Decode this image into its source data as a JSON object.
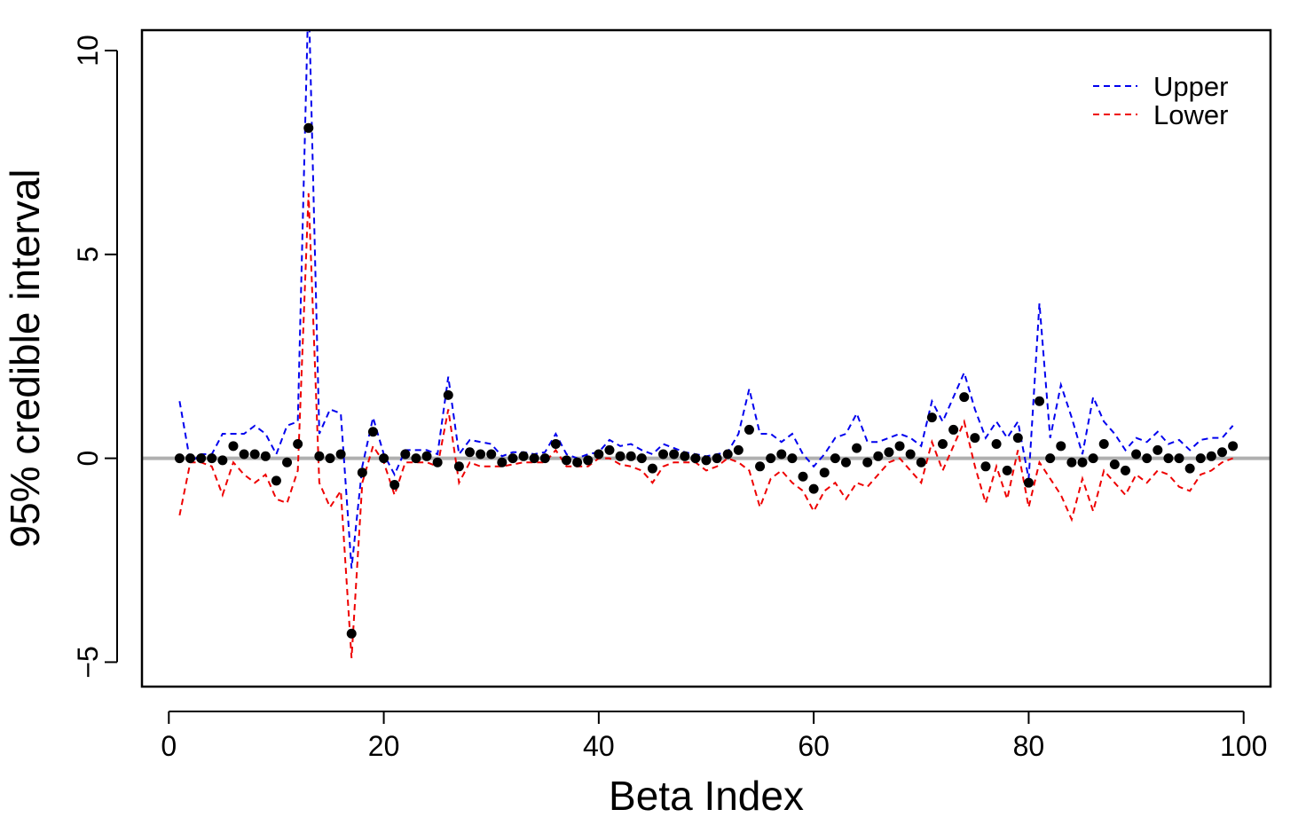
{
  "chart_data": {
    "type": "line",
    "title": "",
    "xlabel": "Beta Index",
    "ylabel": "95% credible interval",
    "xlim": [
      -2.5,
      102.5
    ],
    "ylim": [
      -5.6,
      10.5
    ],
    "xticks": [
      0,
      20,
      40,
      60,
      80,
      100
    ],
    "yticks": [
      -5,
      0,
      5,
      10
    ],
    "grid": false,
    "legend_position": "top-right",
    "reference_line": {
      "y": 0,
      "color": "#b0b0b0"
    },
    "x": [
      1,
      2,
      3,
      4,
      5,
      6,
      7,
      8,
      9,
      10,
      11,
      12,
      13,
      14,
      15,
      16,
      17,
      18,
      19,
      20,
      21,
      22,
      23,
      24,
      25,
      26,
      27,
      28,
      29,
      30,
      31,
      32,
      33,
      34,
      35,
      36,
      37,
      38,
      39,
      40,
      41,
      42,
      43,
      44,
      45,
      46,
      47,
      48,
      49,
      50,
      51,
      52,
      53,
      54,
      55,
      56,
      57,
      58,
      59,
      60,
      61,
      62,
      63,
      64,
      65,
      66,
      67,
      68,
      69,
      70,
      71,
      72,
      73,
      74,
      75,
      76,
      77,
      78,
      79,
      80,
      81,
      82,
      83,
      84,
      85,
      86,
      87,
      88,
      89,
      90,
      91,
      92,
      93,
      94,
      95,
      96,
      97,
      98,
      99
    ],
    "series": [
      {
        "name": "Upper",
        "style": "dashed",
        "color": "#0000ee",
        "values": [
          1.4,
          -0.1,
          0.1,
          0.1,
          0.6,
          0.6,
          0.6,
          0.8,
          0.6,
          0.1,
          0.8,
          0.9,
          11.5,
          0.6,
          1.2,
          1.1,
          -2.7,
          -0.2,
          1.0,
          0.1,
          -0.4,
          0.2,
          0.2,
          0.2,
          0.1,
          2.0,
          0.1,
          0.45,
          0.4,
          0.35,
          0.05,
          0.15,
          0.15,
          0.1,
          0.15,
          0.6,
          0.1,
          0.0,
          0.1,
          0.15,
          0.45,
          0.3,
          0.35,
          0.2,
          0.1,
          0.35,
          0.25,
          0.15,
          0.1,
          0.05,
          0.1,
          0.15,
          0.6,
          1.7,
          0.6,
          0.6,
          0.4,
          0.6,
          0.1,
          -0.2,
          0.1,
          0.5,
          0.6,
          1.1,
          0.4,
          0.4,
          0.5,
          0.6,
          0.5,
          0.3,
          1.4,
          0.9,
          1.5,
          2.1,
          1.2,
          0.5,
          0.9,
          0.5,
          0.9,
          -0.5,
          3.8,
          0.5,
          1.8,
          1.0,
          0.1,
          1.5,
          0.9,
          0.6,
          0.2,
          0.5,
          0.4,
          0.65,
          0.35,
          0.45,
          0.2,
          0.45,
          0.5,
          0.5,
          0.8
        ]
      },
      {
        "name": "Lower",
        "style": "dashed",
        "color": "#ee0000",
        "values": [
          -1.4,
          -0.1,
          -0.1,
          -0.2,
          -0.9,
          -0.1,
          -0.4,
          -0.6,
          -0.4,
          -1.0,
          -1.1,
          -0.3,
          6.5,
          -0.6,
          -1.2,
          -0.8,
          -4.9,
          -0.6,
          0.3,
          -0.1,
          -0.9,
          -0.1,
          -0.1,
          -0.1,
          -0.2,
          1.2,
          -0.6,
          -0.1,
          -0.2,
          -0.2,
          -0.2,
          -0.15,
          -0.1,
          -0.1,
          -0.1,
          0.2,
          -0.2,
          -0.2,
          -0.2,
          0.0,
          0.0,
          -0.15,
          -0.2,
          -0.3,
          -0.6,
          -0.2,
          -0.1,
          -0.1,
          -0.1,
          -0.3,
          -0.2,
          0.0,
          -0.1,
          -0.3,
          -1.2,
          -0.5,
          -0.3,
          -0.6,
          -0.8,
          -1.3,
          -0.8,
          -0.6,
          -1.0,
          -0.6,
          -0.7,
          -0.4,
          -0.1,
          0.0,
          -0.3,
          -0.6,
          0.4,
          -0.3,
          0.3,
          0.9,
          -0.2,
          -1.1,
          -0.2,
          -1.0,
          0.2,
          -1.2,
          -0.1,
          -0.5,
          -0.9,
          -1.5,
          -0.5,
          -1.3,
          -0.3,
          -0.6,
          -0.9,
          -0.4,
          -0.6,
          -0.3,
          -0.4,
          -0.7,
          -0.8,
          -0.4,
          -0.3,
          -0.1,
          0.0
        ]
      },
      {
        "name": "",
        "style": "points",
        "color": "#000000",
        "values": [
          0.0,
          0.0,
          0.0,
          0.0,
          -0.05,
          0.3,
          0.1,
          0.1,
          0.05,
          -0.55,
          -0.1,
          0.35,
          8.1,
          0.05,
          0.0,
          0.1,
          -4.3,
          -0.35,
          0.65,
          0.0,
          -0.65,
          0.1,
          0.0,
          0.05,
          -0.1,
          1.55,
          -0.2,
          0.15,
          0.1,
          0.1,
          -0.1,
          0.0,
          0.05,
          0.0,
          0.0,
          0.35,
          -0.05,
          -0.1,
          -0.05,
          0.1,
          0.2,
          0.05,
          0.05,
          0.0,
          -0.25,
          0.1,
          0.1,
          0.05,
          0.0,
          -0.05,
          0.0,
          0.1,
          0.2,
          0.7,
          -0.2,
          0.0,
          0.1,
          0.0,
          -0.45,
          -0.75,
          -0.35,
          0.0,
          -0.1,
          0.25,
          -0.1,
          0.05,
          0.15,
          0.3,
          0.1,
          -0.1,
          1.0,
          0.35,
          0.7,
          1.5,
          0.5,
          -0.2,
          0.35,
          -0.3,
          0.5,
          -0.6,
          1.4,
          0.0,
          0.3,
          -0.1,
          -0.1,
          0.0,
          0.35,
          -0.15,
          -0.3,
          0.1,
          0.0,
          0.2,
          0.0,
          0.0,
          -0.25,
          0.0,
          0.05,
          0.15,
          0.3
        ]
      }
    ]
  }
}
